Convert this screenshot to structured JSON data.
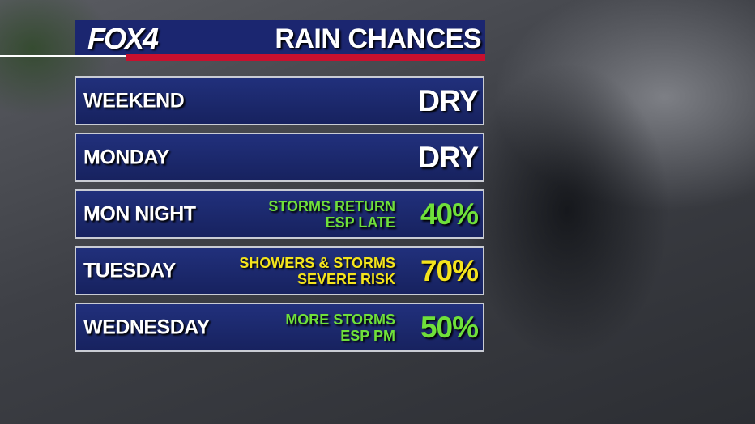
{
  "header": {
    "logo": "FOX4",
    "title": "RAIN CHANCES"
  },
  "rows": [
    {
      "day": "WEEKEND",
      "chance": "DRY",
      "color": "#ffffff"
    },
    {
      "day": "MONDAY",
      "chance": "DRY",
      "color": "#ffffff"
    },
    {
      "day": "MON NIGHT",
      "note": [
        "STORMS RETURN",
        "ESP LATE"
      ],
      "chance": "40%",
      "color": "#6fe03a"
    },
    {
      "day": "TUESDAY",
      "note": [
        "SHOWERS & STORMS",
        "SEVERE RISK"
      ],
      "chance": "70%",
      "color": "#f4e41c"
    },
    {
      "day": "WEDNESDAY",
      "note": [
        "MORE STORMS",
        "ESP PM"
      ],
      "chance": "50%",
      "color": "#6fe03a"
    }
  ]
}
